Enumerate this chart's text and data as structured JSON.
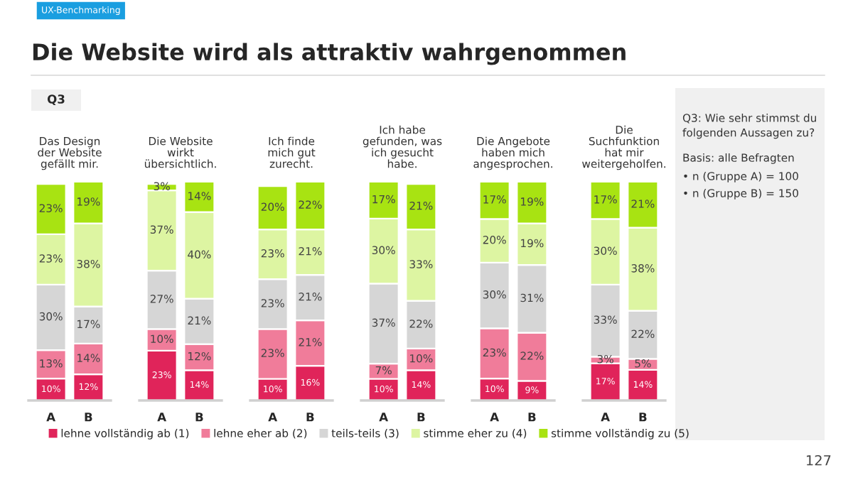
{
  "chart_data": [
    {
      "type": "other",
      "title": "Die Website wird als attraktiv wahrgenommen",
      "subtitle": "Q3",
      "annotations": [
        "UX-Benchmarking",
        "Q3: Wie sehr stimmst du\nfolgenden Aussagen zu?",
        "Basis: alle Befragten",
        "• n (Gruppe A) = 100",
        "• n (Gruppe B) = 150",
        "127"
      ]
    },
    {
      "type": "bar",
      "stacked": true,
      "title": "Das Design\nder Website\ngefällt mir.",
      "categories": [
        "A",
        "B"
      ],
      "legend": "bottom",
      "series": [
        {
          "name": "lehne vollständig ab (1)",
          "color": "#e0245a",
          "values": [
            10,
            12
          ],
          "value_labels": [
            "10%",
            "12%"
          ]
        },
        {
          "name": "lehne eher ab (2)",
          "color": "#f07c9a",
          "values": [
            13,
            14
          ],
          "value_labels": [
            "13%",
            "14%"
          ]
        },
        {
          "name": "teils-teils (3)",
          "color": "#d6d6d6",
          "values": [
            30,
            17
          ],
          "value_labels": [
            "30%",
            "17%"
          ]
        },
        {
          "name": "stimme eher zu (4)",
          "color": "#ddf5a2",
          "values": [
            23,
            38
          ],
          "value_labels": [
            "23%",
            "38%"
          ]
        },
        {
          "name": "stimme vollständig zu (5)",
          "color": "#a8e312",
          "values": [
            23,
            19
          ],
          "value_labels": [
            "23%",
            "19%"
          ]
        }
      ]
    },
    {
      "type": "bar",
      "stacked": true,
      "title": "Die Website\nwirkt\nübersichtlich.",
      "categories": [
        "A",
        "B"
      ],
      "series": [
        {
          "color": "#e0245a",
          "values": [
            23,
            14
          ],
          "value_labels": [
            "23%",
            "14%"
          ]
        },
        {
          "color": "#f07c9a",
          "values": [
            10,
            12
          ],
          "value_labels": [
            "10%",
            "12%"
          ]
        },
        {
          "color": "#d6d6d6",
          "values": [
            27,
            21
          ],
          "value_labels": [
            "27%",
            "21%"
          ]
        },
        {
          "color": "#ddf5a2",
          "values": [
            37,
            40
          ],
          "value_labels": [
            "37%",
            "40%"
          ]
        },
        {
          "color": "#a8e312",
          "values": [
            3,
            14
          ],
          "value_labels": [
            "3%",
            "14%"
          ]
        }
      ]
    },
    {
      "type": "bar",
      "stacked": true,
      "title": "Ich finde\nmich gut\nzurecht.",
      "categories": [
        "A",
        "B"
      ],
      "series": [
        {
          "color": "#e0245a",
          "values": [
            10,
            16
          ],
          "value_labels": [
            "10%",
            "16%"
          ]
        },
        {
          "color": "#f07c9a",
          "values": [
            23,
            21
          ],
          "value_labels": [
            "23%",
            "21%"
          ]
        },
        {
          "color": "#d6d6d6",
          "values": [
            23,
            21
          ],
          "value_labels": [
            "23%",
            "21%"
          ]
        },
        {
          "color": "#ddf5a2",
          "values": [
            23,
            21
          ],
          "value_labels": [
            "23%",
            "21%"
          ]
        },
        {
          "color": "#a8e312",
          "values": [
            20,
            22
          ],
          "value_labels": [
            "20%",
            "22%"
          ]
        }
      ]
    },
    {
      "type": "bar",
      "stacked": true,
      "title": "Ich habe\ngefunden, was\nich gesucht\nhabe.",
      "categories": [
        "A",
        "B"
      ],
      "series": [
        {
          "color": "#e0245a",
          "values": [
            10,
            14
          ],
          "value_labels": [
            "10%",
            "14%"
          ]
        },
        {
          "color": "#f07c9a",
          "values": [
            7,
            10
          ],
          "value_labels": [
            "7%",
            "10%"
          ]
        },
        {
          "color": "#d6d6d6",
          "values": [
            37,
            22
          ],
          "value_labels": [
            "37%",
            "22%"
          ]
        },
        {
          "color": "#ddf5a2",
          "values": [
            30,
            33
          ],
          "value_labels": [
            "30%",
            "33%"
          ]
        },
        {
          "color": "#a8e312",
          "values": [
            17,
            21
          ],
          "value_labels": [
            "17%",
            "21%"
          ]
        }
      ]
    },
    {
      "type": "bar",
      "stacked": true,
      "title": "Die Angebote\nhaben mich\nangesprochen.",
      "categories": [
        "A",
        "B"
      ],
      "series": [
        {
          "color": "#e0245a",
          "values": [
            10,
            9
          ],
          "value_labels": [
            "10%",
            "9%"
          ]
        },
        {
          "color": "#f07c9a",
          "values": [
            23,
            22
          ],
          "value_labels": [
            "23%",
            "22%"
          ]
        },
        {
          "color": "#d6d6d6",
          "values": [
            30,
            31
          ],
          "value_labels": [
            "30%",
            "31%"
          ]
        },
        {
          "color": "#ddf5a2",
          "values": [
            20,
            19
          ],
          "value_labels": [
            "20%",
            "19%"
          ]
        },
        {
          "color": "#a8e312",
          "values": [
            17,
            19
          ],
          "value_labels": [
            "17%",
            "19%"
          ]
        }
      ]
    },
    {
      "type": "bar",
      "stacked": true,
      "title": "Die\nSuchfunktion\nhat mir\nweitergeholfen.",
      "categories": [
        "A",
        "B"
      ],
      "series": [
        {
          "color": "#e0245a",
          "values": [
            17,
            14
          ],
          "value_labels": [
            "17%",
            "14%"
          ]
        },
        {
          "color": "#f07c9a",
          "values": [
            3,
            5
          ],
          "value_labels": [
            "3%",
            "5%"
          ]
        },
        {
          "color": "#d6d6d6",
          "values": [
            33,
            22
          ],
          "value_labels": [
            "33%",
            "22%"
          ]
        },
        {
          "color": "#ddf5a2",
          "values": [
            30,
            38
          ],
          "value_labels": [
            "30%",
            "38%"
          ]
        },
        {
          "color": "#a8e312",
          "values": [
            17,
            21
          ],
          "value_labels": [
            "17%",
            "21%"
          ]
        }
      ]
    }
  ]
}
